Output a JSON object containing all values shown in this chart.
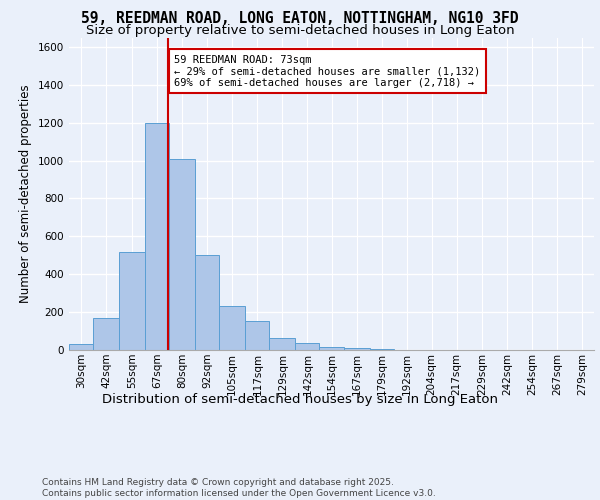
{
  "title_line1": "59, REEDMAN ROAD, LONG EATON, NOTTINGHAM, NG10 3FD",
  "title_line2": "Size of property relative to semi-detached houses in Long Eaton",
  "xlabel": "Distribution of semi-detached houses by size in Long Eaton",
  "ylabel": "Number of semi-detached properties",
  "footnote": "Contains HM Land Registry data © Crown copyright and database right 2025.\nContains public sector information licensed under the Open Government Licence v3.0.",
  "annotation_title": "59 REEDMAN ROAD: 73sqm",
  "annotation_line2": "← 29% of semi-detached houses are smaller (1,132)",
  "annotation_line3": "69% of semi-detached houses are larger (2,718) →",
  "property_size": 73,
  "bar_categories": [
    "30sqm",
    "42sqm",
    "55sqm",
    "67sqm",
    "80sqm",
    "92sqm",
    "105sqm",
    "117sqm",
    "129sqm",
    "142sqm",
    "154sqm",
    "167sqm",
    "179sqm",
    "192sqm",
    "204sqm",
    "217sqm",
    "229sqm",
    "242sqm",
    "254sqm",
    "267sqm",
    "279sqm"
  ],
  "bar_edges": [
    23.5,
    35.5,
    48.5,
    61.5,
    73.5,
    86.5,
    98.5,
    111.5,
    123.5,
    136.5,
    148.5,
    160.5,
    173.5,
    185.5,
    198.5,
    210.5,
    223.5,
    235.5,
    248.5,
    260.5,
    273.5,
    285.5
  ],
  "bar_heights": [
    30,
    170,
    520,
    1200,
    1010,
    500,
    230,
    155,
    65,
    35,
    15,
    10,
    5,
    2,
    1,
    0,
    0,
    0,
    0,
    0,
    0
  ],
  "bar_color": "#aec6e8",
  "bar_edge_color": "#5a9fd4",
  "vline_x": 73,
  "vline_color": "#cc0000",
  "annotation_box_color": "#cc0000",
  "ylim": [
    0,
    1650
  ],
  "yticks": [
    0,
    200,
    400,
    600,
    800,
    1000,
    1200,
    1400,
    1600
  ],
  "bg_color": "#eaf0fa",
  "plot_bg_color": "#eaf0fa",
  "grid_color": "#ffffff",
  "title_fontsize": 10.5,
  "subtitle_fontsize": 9.5,
  "ylabel_fontsize": 8.5,
  "xlabel_fontsize": 9.5,
  "tick_fontsize": 7.5,
  "annotation_fontsize": 7.5,
  "footnote_fontsize": 6.5
}
